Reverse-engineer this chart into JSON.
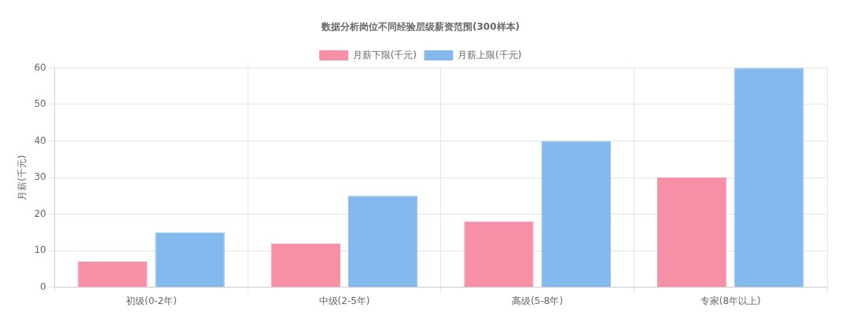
{
  "chart_data": {
    "type": "bar",
    "title": "数据分析岗位不同经验层级薪资范围(300样本)",
    "ylabel": "月薪(千元)",
    "categories": [
      "初级(0-2年)",
      "中级(2-5年)",
      "高级(5-8年)",
      "专家(8年以上)"
    ],
    "series": [
      {
        "name": "月薪下限(千元)",
        "color": "#f78fa7",
        "values": [
          7,
          12,
          18,
          30
        ]
      },
      {
        "name": "月薪上限(千元)",
        "color": "#84b9ee",
        "values": [
          15,
          25,
          40,
          60
        ]
      }
    ],
    "ylim": [
      0,
      60
    ],
    "yticks": [
      0,
      10,
      20,
      30,
      40,
      50,
      60
    ],
    "grid": true,
    "legend": "top"
  }
}
